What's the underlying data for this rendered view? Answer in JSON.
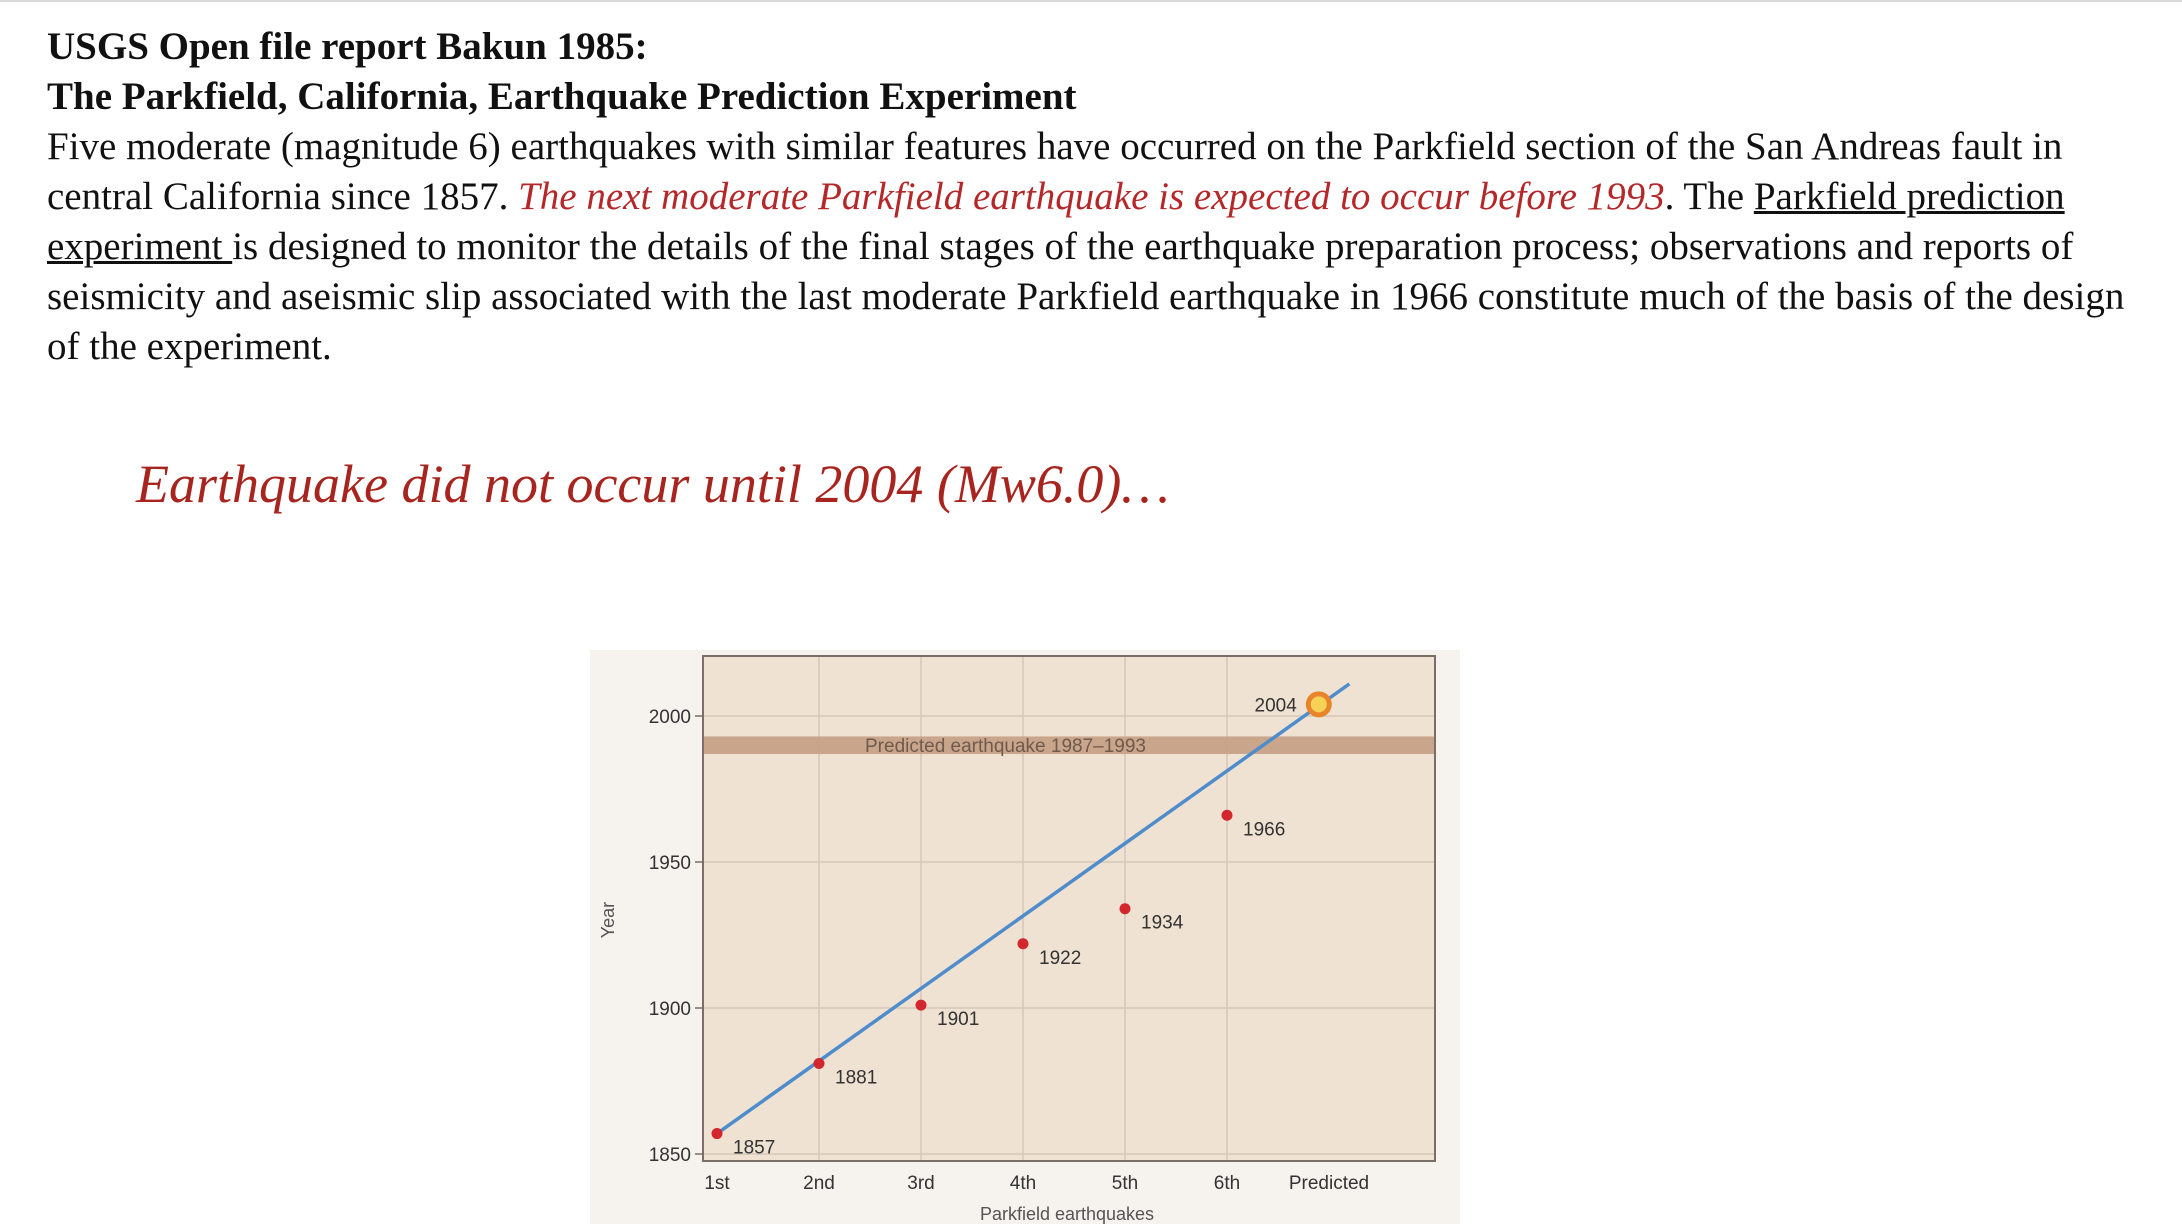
{
  "header": {
    "line1": "USGS Open file report Bakun 1985:",
    "line2": "The Parkfield, California, Earthquake Prediction Experiment",
    "para_part1": "Five moderate (magnitude 6) earthquakes with similar features have occurred on the Parkfield section of the San Andreas fault in central California since 1857. ",
    "para_red": "The next moderate Parkfield earthquake is expected to occur before 1993",
    "para_part2": ". The ",
    "para_link": "Parkfield prediction experiment ",
    "para_part3": "is designed to monitor the details of the final stages of the earthquake preparation process; observations and reports of seismicity and aseismic slip associated with the last moderate Parkfield earthquake in 1966 constitute much of the basis of the design of the experiment."
  },
  "callout": "Earthquake did not occur until 2004 (Mw6.0)…",
  "chart_data": {
    "type": "scatter",
    "title": "",
    "xlabel": "Parkfield earthquakes",
    "ylabel": "Year",
    "categories": [
      "1st",
      "2nd",
      "3rd",
      "4th",
      "5th",
      "6th",
      "Predicted"
    ],
    "yticks": [
      1850,
      1900,
      1950,
      2000
    ],
    "ylim": [
      1850,
      2015
    ],
    "points": [
      {
        "x": 1,
        "y": 1857,
        "label": "1857"
      },
      {
        "x": 2,
        "y": 1881,
        "label": "1881"
      },
      {
        "x": 3,
        "y": 1901,
        "label": "1901"
      },
      {
        "x": 4,
        "y": 1922,
        "label": "1922"
      },
      {
        "x": 5,
        "y": 1934,
        "label": "1934"
      },
      {
        "x": 6,
        "y": 1966,
        "label": "1966"
      }
    ],
    "trend_line": {
      "x": [
        1,
        7.2
      ],
      "y": [
        1857,
        2011
      ]
    },
    "predicted_band": {
      "label": "Predicted earthquake   1987–1993",
      "y": [
        1987,
        1993
      ]
    },
    "actual_event": {
      "x": 6.9,
      "y": 2004,
      "label": "2004"
    },
    "grid": true,
    "colors": {
      "background": "#efe2d2",
      "point": "#d2282d",
      "line": "#4f8ccc",
      "band": "#c49e83",
      "marker_outer": "#e8852a",
      "marker_inner": "#f6d257"
    }
  }
}
